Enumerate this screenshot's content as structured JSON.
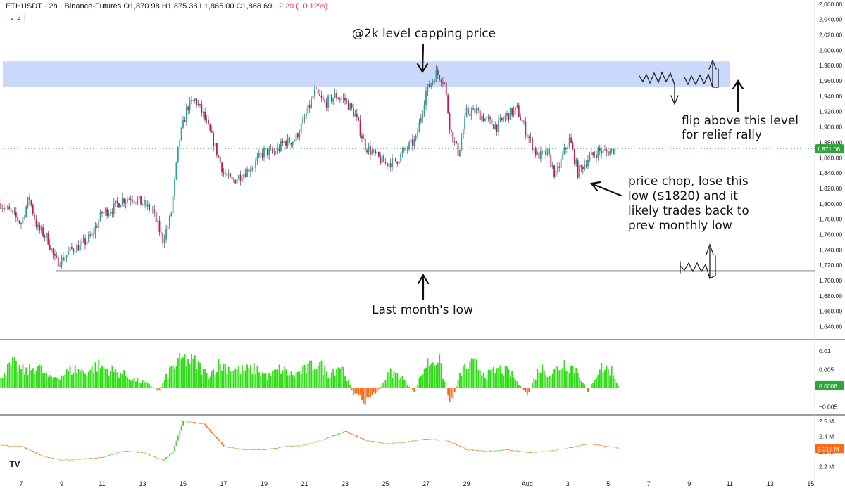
{
  "header": {
    "symbol": "ETHUSDT · 2h · Binance-Futures",
    "ohlc": "O1,870.98 H1,875.38 L1,865.00 C1,868.69",
    "change": "−2.29 (−0.12%)",
    "collapse_label": "⌄ 2"
  },
  "logo_text": "TV",
  "colors": {
    "up": "#26a69a",
    "down": "#c2185b",
    "wick": "#5d606b",
    "resistance_band": "#c9d8fb",
    "support_line": "#3b3b3b",
    "osc_pos": "#2fdc16",
    "osc_neg": "#ff6a14",
    "price_label": "#2fa43a",
    "vol_up": "#4cd137",
    "vol_down": "#ff6a14"
  },
  "chart_data": [
    {
      "type": "candlestick",
      "title": "ETHUSDT · 2h · Binance-Futures",
      "x_tick_labels": [
        "7",
        "9",
        "11",
        "13",
        "15",
        "17",
        "19",
        "21",
        "23",
        "25",
        "27",
        "29",
        "Aug",
        "3",
        "5",
        "7",
        "9",
        "11",
        "13",
        "15"
      ],
      "y_tick_labels": [
        "1,640.00",
        "1,660.00",
        "1,680.00",
        "1,700.00",
        "1,720.00",
        "1,740.00",
        "1,760.00",
        "1,780.00",
        "1,800.00",
        "1,820.00",
        "1,840.00",
        "1,860.00",
        "1,880.00",
        "1,900.00",
        "1,920.00",
        "1,940.00",
        "1,960.00",
        "1,980.00",
        "2,000.00",
        "2,020.00",
        "2,040.00",
        "2,060.00"
      ],
      "ylim": [
        1630,
        2063
      ],
      "current_price_label": "1,871.06",
      "current_price": 1871.06,
      "resistance_zone": [
        1952,
        1985
      ],
      "support_level": 1712,
      "close_path": [
        {
          "x": "Jul 6",
          "y": 1800
        },
        {
          "x": "Jul 7",
          "y": 1775
        },
        {
          "x": "Jul 7.4",
          "y": 1808
        },
        {
          "x": "Jul 7.8",
          "y": 1768
        },
        {
          "x": "Jul 8.3",
          "y": 1755
        },
        {
          "x": "Jul 8.7",
          "y": 1724
        },
        {
          "x": "Jul 9",
          "y": 1727
        },
        {
          "x": "Jul 9.5",
          "y": 1740
        },
        {
          "x": "Jul 10",
          "y": 1746
        },
        {
          "x": "Jul 10.5",
          "y": 1758
        },
        {
          "x": "Jul 11",
          "y": 1788
        },
        {
          "x": "Jul 11.5",
          "y": 1793
        },
        {
          "x": "Jul 12",
          "y": 1805
        },
        {
          "x": "Jul 12.5",
          "y": 1808
        },
        {
          "x": "Jul 13",
          "y": 1800
        },
        {
          "x": "Jul 13.5",
          "y": 1790
        },
        {
          "x": "Jul 14",
          "y": 1752
        },
        {
          "x": "Jul 14.4",
          "y": 1784
        },
        {
          "x": "Jul 14.8",
          "y": 1880
        },
        {
          "x": "Jul 15.2",
          "y": 1925
        },
        {
          "x": "Jul 15.6",
          "y": 1935
        },
        {
          "x": "Jul 16",
          "y": 1915
        },
        {
          "x": "Jul 16.5",
          "y": 1880
        },
        {
          "x": "Jul 17",
          "y": 1840
        },
        {
          "x": "Jul 17.4",
          "y": 1828
        },
        {
          "x": "Jul 18",
          "y": 1840
        },
        {
          "x": "Jul 18.5",
          "y": 1850
        },
        {
          "x": "Jul 19",
          "y": 1868
        },
        {
          "x": "Jul 19.5",
          "y": 1865
        },
        {
          "x": "Jul 20",
          "y": 1880
        },
        {
          "x": "Jul 20.5",
          "y": 1882
        },
        {
          "x": "Jul 21",
          "y": 1910
        },
        {
          "x": "Jul 21.5",
          "y": 1945
        },
        {
          "x": "Jul 22",
          "y": 1930
        },
        {
          "x": "Jul 22.5",
          "y": 1940
        },
        {
          "x": "Jul 23",
          "y": 1935
        },
        {
          "x": "Jul 23.5",
          "y": 1915
        },
        {
          "x": "Jul 24",
          "y": 1875
        },
        {
          "x": "Jul 24.5",
          "y": 1862
        },
        {
          "x": "Jul 25",
          "y": 1852
        },
        {
          "x": "Jul 25.5",
          "y": 1855
        },
        {
          "x": "Jul 26",
          "y": 1870
        },
        {
          "x": "Jul 26.5",
          "y": 1883
        },
        {
          "x": "Jul 27",
          "y": 1945
        },
        {
          "x": "Jul 27.5",
          "y": 1970
        },
        {
          "x": "Jul 27.9",
          "y": 1960
        },
        {
          "x": "Jul 28.2",
          "y": 1895
        },
        {
          "x": "Jul 28.6",
          "y": 1865
        },
        {
          "x": "Jul 29",
          "y": 1918
        },
        {
          "x": "Jul 29.5",
          "y": 1920
        },
        {
          "x": "Jul 30",
          "y": 1908
        },
        {
          "x": "Jul 30.5",
          "y": 1900
        },
        {
          "x": "Jul 31",
          "y": 1915
        },
        {
          "x": "Jul 31.5",
          "y": 1922
        },
        {
          "x": "Aug 1",
          "y": 1890
        },
        {
          "x": "Aug 1.5",
          "y": 1862
        },
        {
          "x": "Aug 2",
          "y": 1865
        },
        {
          "x": "Aug 2.4",
          "y": 1835
        },
        {
          "x": "Aug 2.8",
          "y": 1865
        },
        {
          "x": "Aug 3.1",
          "y": 1884
        },
        {
          "x": "Aug 3.5",
          "y": 1840
        },
        {
          "x": "Aug 4",
          "y": 1858
        },
        {
          "x": "Aug 4.5",
          "y": 1868
        },
        {
          "x": "Aug 5",
          "y": 1867
        },
        {
          "x": "Aug 5.4",
          "y": 1871
        }
      ]
    },
    {
      "type": "bar",
      "title": "",
      "y_tick_labels": [
        "0.01",
        "0.005",
        "−0.005"
      ],
      "current_value_label": "0.0006",
      "current_value": 0.0006,
      "ylim": [
        -0.0065,
        0.0118
      ],
      "series": [
        {
          "x": "Jul 6",
          "y": 0.004
        },
        {
          "x": "Jul 6.6",
          "y": 0.0075
        },
        {
          "x": "Jul 7.2",
          "y": 0.005
        },
        {
          "x": "Jul 7.8",
          "y": 0.007
        },
        {
          "x": "Jul 8.4",
          "y": 0.003
        },
        {
          "x": "Jul 9",
          "y": 0.004
        },
        {
          "x": "Jul 9.6",
          "y": 0.006
        },
        {
          "x": "Jul 10.2",
          "y": 0.005
        },
        {
          "x": "Jul 10.8",
          "y": 0.007
        },
        {
          "x": "Jul 11.4",
          "y": 0.0055
        },
        {
          "x": "Jul 12",
          "y": 0.0045
        },
        {
          "x": "Jul 12.6",
          "y": 0.0025
        },
        {
          "x": "Jul 13.2",
          "y": 0.0015
        },
        {
          "x": "Jul 13.8",
          "y": -0.001
        },
        {
          "x": "Jul 14.4",
          "y": 0.006
        },
        {
          "x": "Jul 15",
          "y": 0.009
        },
        {
          "x": "Jul 15.6",
          "y": 0.008
        },
        {
          "x": "Jul 16.2",
          "y": 0.004
        },
        {
          "x": "Jul 16.8",
          "y": 0.0075
        },
        {
          "x": "Jul 17.4",
          "y": 0.006
        },
        {
          "x": "Jul 18",
          "y": 0.0055
        },
        {
          "x": "Jul 18.6",
          "y": 0.006
        },
        {
          "x": "Jul 19.2",
          "y": 0.0035
        },
        {
          "x": "Jul 19.8",
          "y": 0.006
        },
        {
          "x": "Jul 20.4",
          "y": 0.004
        },
        {
          "x": "Jul 21",
          "y": 0.0055
        },
        {
          "x": "Jul 21.6",
          "y": 0.008
        },
        {
          "x": "Jul 22.2",
          "y": 0.0045
        },
        {
          "x": "Jul 22.8",
          "y": 0.0075
        },
        {
          "x": "Jul 23.4",
          "y": -0.0015
        },
        {
          "x": "Jul 24",
          "y": -0.004
        },
        {
          "x": "Jul 24.6",
          "y": -0.001
        },
        {
          "x": "Jul 25.2",
          "y": 0.005
        },
        {
          "x": "Jul 25.8",
          "y": 0.0035
        },
        {
          "x": "Jul 26.4",
          "y": -0.0015
        },
        {
          "x": "Jul 27",
          "y": 0.0075
        },
        {
          "x": "Jul 27.6",
          "y": 0.0095
        },
        {
          "x": "Jul 28.2",
          "y": -0.005
        },
        {
          "x": "Jul 28.8",
          "y": 0.006
        },
        {
          "x": "Jul 29.4",
          "y": 0.0075
        },
        {
          "x": "Jul 30",
          "y": 0.004
        },
        {
          "x": "Jul 30.6",
          "y": 0.006
        },
        {
          "x": "Jul 31.2",
          "y": 0.0045
        },
        {
          "x": "Aug 1",
          "y": -0.0025
        },
        {
          "x": "Aug 1.6",
          "y": 0.0065
        },
        {
          "x": "Aug 2.2",
          "y": 0.0045
        },
        {
          "x": "Aug 2.8",
          "y": 0.008
        },
        {
          "x": "Aug 3.4",
          "y": 0.006
        },
        {
          "x": "Aug 4",
          "y": -0.001
        },
        {
          "x": "Aug 4.6",
          "y": 0.0065
        },
        {
          "x": "Aug 5.2",
          "y": 0.0055
        },
        {
          "x": "Aug 5.5",
          "y": 0.0006
        }
      ]
    },
    {
      "type": "line",
      "title": "",
      "y_tick_labels": [
        "2.5 M",
        "2.4 M",
        "2.3 M",
        "2.2 M"
      ],
      "current_value_label": "2.317 M",
      "current_value": 2.317,
      "ylim": [
        2.14,
        2.52
      ],
      "series": [
        {
          "x": "Jul 6",
          "y": 2.34
        },
        {
          "x": "Jul 7",
          "y": 2.33
        },
        {
          "x": "Jul 8",
          "y": 2.27
        },
        {
          "x": "Jul 9",
          "y": 2.24
        },
        {
          "x": "Jul 10",
          "y": 2.25
        },
        {
          "x": "Jul 11",
          "y": 2.26
        },
        {
          "x": "Jul 12",
          "y": 2.3
        },
        {
          "x": "Jul 13",
          "y": 2.29
        },
        {
          "x": "Jul 14",
          "y": 2.24
        },
        {
          "x": "Jul 14.5",
          "y": 2.3
        },
        {
          "x": "Jul 15",
          "y": 2.5
        },
        {
          "x": "Jul 16",
          "y": 2.48
        },
        {
          "x": "Jul 17",
          "y": 2.33
        },
        {
          "x": "Jul 18",
          "y": 2.31
        },
        {
          "x": "Jul 19",
          "y": 2.31
        },
        {
          "x": "Jul 20",
          "y": 2.33
        },
        {
          "x": "Jul 21",
          "y": 2.34
        },
        {
          "x": "Jul 22",
          "y": 2.38
        },
        {
          "x": "Jul 23",
          "y": 2.43
        },
        {
          "x": "Jul 24",
          "y": 2.37
        },
        {
          "x": "Jul 25",
          "y": 2.35
        },
        {
          "x": "Jul 26",
          "y": 2.36
        },
        {
          "x": "Jul 27",
          "y": 2.38
        },
        {
          "x": "Jul 28",
          "y": 2.37
        },
        {
          "x": "Jul 29",
          "y": 2.31
        },
        {
          "x": "Jul 30",
          "y": 2.3
        },
        {
          "x": "Jul 31",
          "y": 2.31
        },
        {
          "x": "Aug 1",
          "y": 2.29
        },
        {
          "x": "Aug 2",
          "y": 2.3
        },
        {
          "x": "Aug 3",
          "y": 2.32
        },
        {
          "x": "Aug 4",
          "y": 2.35
        },
        {
          "x": "Aug 5",
          "y": 2.33
        },
        {
          "x": "Aug 5.5",
          "y": 2.32
        }
      ]
    }
  ],
  "annotations": {
    "top_label": "@2k level capping price",
    "flip_label_line1": "flip above this level",
    "flip_label_line2": "for relief rally",
    "chop_line1": "price chop, lose this",
    "chop_line2": "low ($1820) and it",
    "chop_line3": "likely trades back to",
    "chop_line4": "prev monthly low",
    "low_label": "Last month's low"
  }
}
